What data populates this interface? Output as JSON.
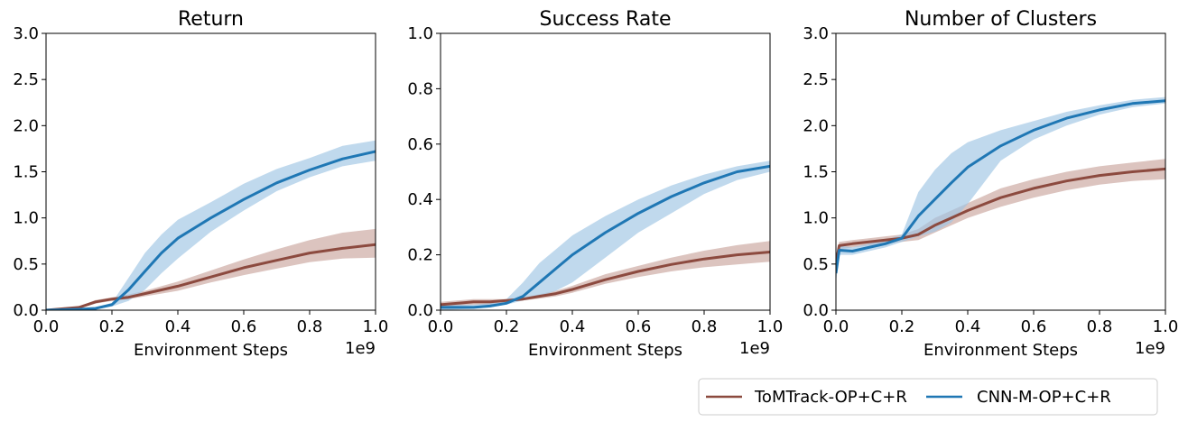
{
  "chart_data": [
    {
      "type": "line",
      "title": "Return",
      "xlabel": "Environment Steps",
      "x_scale_label": "1e9",
      "xlim": [
        0.0,
        1.0
      ],
      "ylim": [
        0.0,
        3.0
      ],
      "xticks": [
        "0.0",
        "0.2",
        "0.4",
        "0.6",
        "0.8",
        "1.0"
      ],
      "yticks": [
        "0.0",
        "0.5",
        "1.0",
        "1.5",
        "2.0",
        "2.5",
        "3.0"
      ],
      "x": [
        0.0,
        0.1,
        0.15,
        0.2,
        0.25,
        0.3,
        0.35,
        0.4,
        0.5,
        0.6,
        0.7,
        0.8,
        0.9,
        1.0
      ],
      "series": [
        {
          "name": "ToMTrack-OP+C+R",
          "color": "#8c4a3f",
          "band_color": "#c9a49c",
          "values": [
            0.0,
            0.03,
            0.09,
            0.12,
            0.14,
            0.18,
            0.22,
            0.26,
            0.36,
            0.46,
            0.54,
            0.62,
            0.67,
            0.71
          ],
          "lower": [
            0.0,
            0.02,
            0.07,
            0.1,
            0.12,
            0.15,
            0.18,
            0.21,
            0.3,
            0.38,
            0.45,
            0.52,
            0.56,
            0.57
          ],
          "upper": [
            0.0,
            0.04,
            0.11,
            0.14,
            0.17,
            0.21,
            0.26,
            0.31,
            0.43,
            0.55,
            0.66,
            0.76,
            0.84,
            0.88
          ]
        },
        {
          "name": "CNN-M-OP+C+R",
          "color": "#1f77b4",
          "band_color": "#9ec5e4",
          "values": [
            0.0,
            0.01,
            0.02,
            0.06,
            0.22,
            0.42,
            0.62,
            0.78,
            1.0,
            1.2,
            1.38,
            1.52,
            1.64,
            1.72
          ],
          "lower": [
            0.0,
            0.01,
            0.01,
            0.04,
            0.1,
            0.22,
            0.4,
            0.56,
            0.85,
            1.08,
            1.29,
            1.44,
            1.56,
            1.62
          ],
          "upper": [
            0.0,
            0.02,
            0.03,
            0.08,
            0.35,
            0.62,
            0.82,
            0.98,
            1.17,
            1.37,
            1.53,
            1.65,
            1.78,
            1.84
          ]
        }
      ]
    },
    {
      "type": "line",
      "title": "Success Rate",
      "xlabel": "Environment Steps",
      "x_scale_label": "1e9",
      "xlim": [
        0.0,
        1.0
      ],
      "ylim": [
        0.0,
        1.0
      ],
      "xticks": [
        "0.0",
        "0.2",
        "0.4",
        "0.6",
        "0.8",
        "1.0"
      ],
      "yticks": [
        "0.0",
        "0.2",
        "0.4",
        "0.6",
        "0.8",
        "1.0"
      ],
      "x": [
        0.0,
        0.1,
        0.15,
        0.2,
        0.25,
        0.3,
        0.35,
        0.4,
        0.5,
        0.6,
        0.7,
        0.8,
        0.9,
        1.0
      ],
      "series": [
        {
          "name": "ToMTrack-OP+C+R",
          "color": "#8c4a3f",
          "band_color": "#c9a49c",
          "values": [
            0.02,
            0.03,
            0.03,
            0.035,
            0.04,
            0.05,
            0.06,
            0.075,
            0.11,
            0.14,
            0.165,
            0.185,
            0.2,
            0.21
          ],
          "lower": [
            0.01,
            0.02,
            0.02,
            0.03,
            0.035,
            0.042,
            0.05,
            0.063,
            0.095,
            0.12,
            0.14,
            0.155,
            0.165,
            0.175
          ],
          "upper": [
            0.03,
            0.04,
            0.04,
            0.04,
            0.045,
            0.058,
            0.07,
            0.088,
            0.13,
            0.16,
            0.19,
            0.215,
            0.235,
            0.25
          ]
        },
        {
          "name": "CNN-M-OP+C+R",
          "color": "#1f77b4",
          "band_color": "#9ec5e4",
          "values": [
            0.01,
            0.01,
            0.015,
            0.025,
            0.05,
            0.1,
            0.15,
            0.2,
            0.28,
            0.35,
            0.41,
            0.46,
            0.5,
            0.52
          ],
          "lower": [
            0.0,
            0.005,
            0.01,
            0.02,
            0.035,
            0.05,
            0.07,
            0.1,
            0.19,
            0.28,
            0.35,
            0.42,
            0.47,
            0.5
          ],
          "upper": [
            0.02,
            0.02,
            0.025,
            0.04,
            0.1,
            0.17,
            0.22,
            0.27,
            0.34,
            0.4,
            0.45,
            0.49,
            0.52,
            0.54
          ]
        }
      ]
    },
    {
      "type": "line",
      "title": "Number of Clusters",
      "xlabel": "Environment Steps",
      "x_scale_label": "1e9",
      "xlim": [
        0.0,
        1.0
      ],
      "ylim": [
        0.0,
        3.0
      ],
      "xticks": [
        "0.0",
        "0.2",
        "0.4",
        "0.6",
        "0.8",
        "1.0"
      ],
      "yticks": [
        "0.0",
        "0.5",
        "1.0",
        "1.5",
        "2.0",
        "2.5",
        "3.0"
      ],
      "x": [
        0.0,
        0.01,
        0.05,
        0.1,
        0.15,
        0.2,
        0.25,
        0.3,
        0.35,
        0.4,
        0.5,
        0.6,
        0.7,
        0.8,
        0.9,
        1.0
      ],
      "series": [
        {
          "name": "ToMTrack-OP+C+R",
          "color": "#8c4a3f",
          "band_color": "#c9a49c",
          "values": [
            0.5,
            0.7,
            0.72,
            0.74,
            0.76,
            0.78,
            0.82,
            0.92,
            1.0,
            1.08,
            1.22,
            1.32,
            1.4,
            1.46,
            1.5,
            1.53
          ],
          "lower": [
            0.4,
            0.66,
            0.68,
            0.7,
            0.72,
            0.74,
            0.76,
            0.84,
            0.92,
            1.0,
            1.12,
            1.22,
            1.3,
            1.36,
            1.4,
            1.42
          ],
          "upper": [
            0.6,
            0.74,
            0.76,
            0.78,
            0.8,
            0.82,
            0.88,
            1.0,
            1.08,
            1.16,
            1.32,
            1.42,
            1.5,
            1.56,
            1.6,
            1.64
          ]
        },
        {
          "name": "CNN-M-OP+C+R",
          "color": "#1f77b4",
          "band_color": "#9ec5e4",
          "values": [
            0.4,
            0.65,
            0.64,
            0.68,
            0.72,
            0.78,
            1.02,
            1.2,
            1.38,
            1.55,
            1.78,
            1.95,
            2.08,
            2.17,
            2.24,
            2.27
          ],
          "lower": [
            0.3,
            0.6,
            0.6,
            0.64,
            0.68,
            0.74,
            0.8,
            0.85,
            0.95,
            1.15,
            1.62,
            1.85,
            2.0,
            2.12,
            2.2,
            2.24
          ],
          "upper": [
            0.5,
            0.7,
            0.68,
            0.72,
            0.76,
            0.82,
            1.28,
            1.52,
            1.7,
            1.82,
            1.95,
            2.05,
            2.15,
            2.22,
            2.28,
            2.31
          ]
        }
      ]
    }
  ],
  "legend": {
    "items": [
      {
        "label": "ToMTrack-OP+C+R",
        "color": "#8c4a3f"
      },
      {
        "label": "CNN-M-OP+C+R",
        "color": "#1f77b4"
      }
    ],
    "position": "bottom-right"
  }
}
